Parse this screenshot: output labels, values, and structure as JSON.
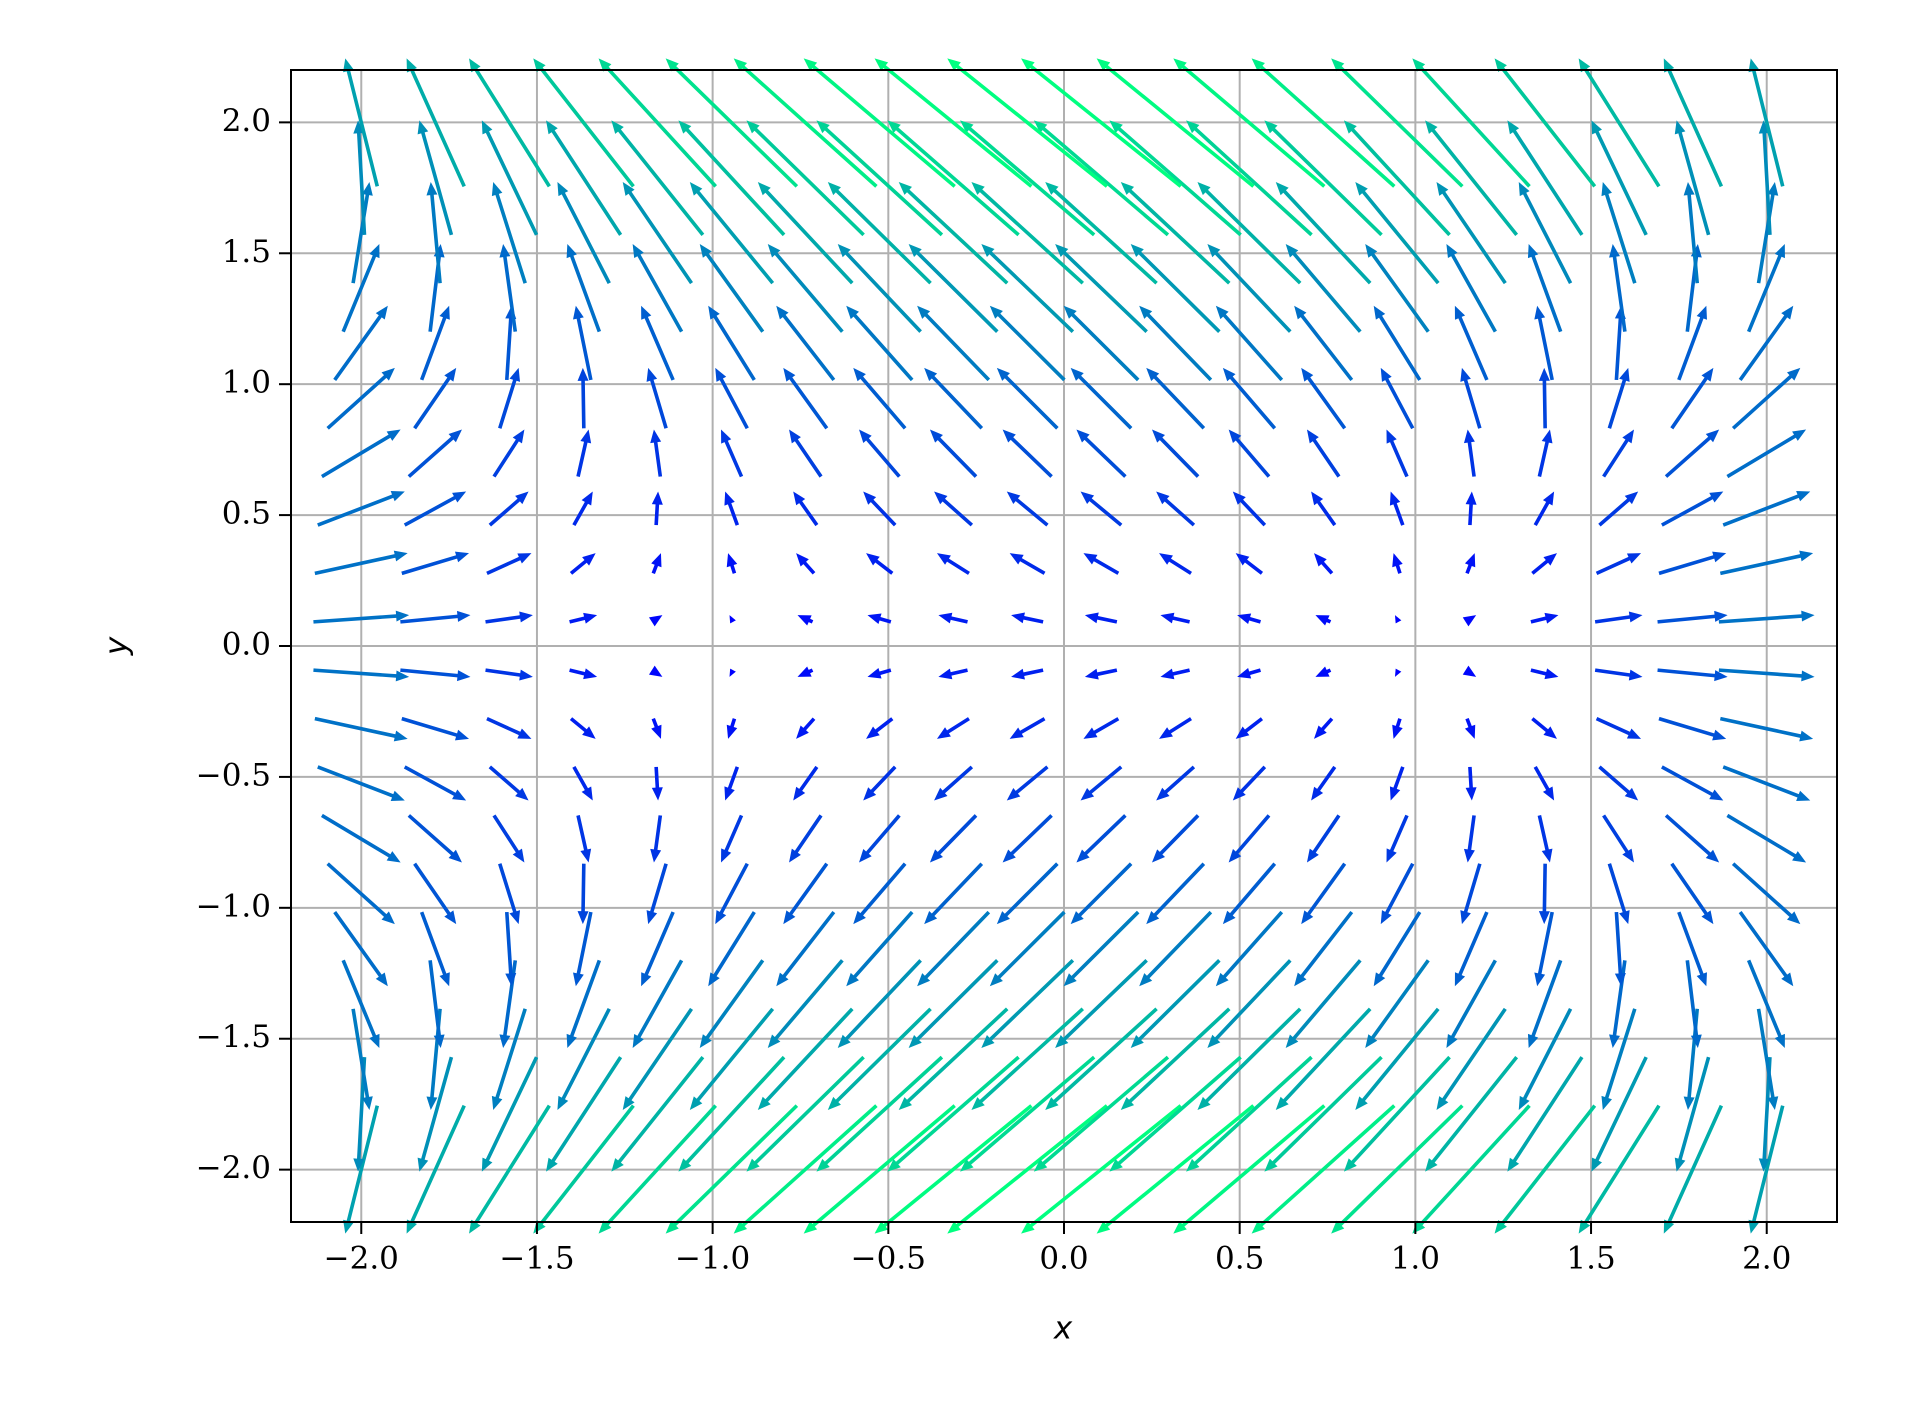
{
  "chart_data": {
    "type": "quiver",
    "xlabel": "x",
    "ylabel": "y",
    "xlim": [
      -2.2,
      2.2
    ],
    "ylim": [
      -2.2,
      2.2
    ],
    "xticks": [
      {
        "value": -2,
        "label": "−2.0"
      },
      {
        "value": -1.5,
        "label": "−1.5"
      },
      {
        "value": -1,
        "label": "−1.0"
      },
      {
        "value": -0.5,
        "label": "−0.5"
      },
      {
        "value": 0,
        "label": "0.0"
      },
      {
        "value": 0.5,
        "label": "0.5"
      },
      {
        "value": 1,
        "label": "1.0"
      },
      {
        "value": 1.5,
        "label": "1.5"
      },
      {
        "value": 2,
        "label": "2.0"
      }
    ],
    "yticks": [
      {
        "value": -2,
        "label": "−2.0"
      },
      {
        "value": -1.5,
        "label": "−1.5"
      },
      {
        "value": -1,
        "label": "−1.0"
      },
      {
        "value": -0.5,
        "label": "−0.5"
      },
      {
        "value": 0,
        "label": "0.0"
      },
      {
        "value": 0.5,
        "label": "0.5"
      },
      {
        "value": 1,
        "label": "1.0"
      },
      {
        "value": 1.5,
        "label": "1.5"
      },
      {
        "value": 2,
        "label": "2.0"
      }
    ],
    "grid": true,
    "colormap": [
      "#0000ff",
      "#00ff80"
    ],
    "x": [
      -2,
      -1.789,
      -1.579,
      -1.368,
      -1.158,
      -0.947,
      -0.737,
      -0.526,
      -0.316,
      -0.105,
      0.105,
      0.316,
      0.526,
      0.737,
      0.947,
      1.158,
      1.368,
      1.579,
      1.789,
      2
    ],
    "y": [
      -2,
      -1.789,
      -1.579,
      -1.368,
      -1.158,
      -0.947,
      -0.737,
      -0.526,
      -0.316,
      -0.105,
      0.105,
      0.316,
      0.526,
      0.737,
      0.947,
      1.158,
      1.368,
      1.579,
      1.789,
      2
    ],
    "u": [
      [
        -1,
        -1.8,
        -2.51,
        -3.13,
        -3.66,
        -4.1,
        -4.46,
        -4.72,
        -4.9,
        -4.99,
        -4.99,
        -4.9,
        -4.72,
        -4.46,
        -4.1,
        -3.66,
        -3.13,
        -2.51,
        -1.8,
        -1
      ],
      [
        -0.2,
        -1,
        -1.71,
        -2.33,
        -2.86,
        -3.3,
        -3.66,
        -3.92,
        -4.1,
        -4.19,
        -4.19,
        -4.1,
        -3.92,
        -3.66,
        -3.3,
        -2.86,
        -2.33,
        -1.71,
        -1,
        -0.2
      ],
      [
        0.51,
        -0.29,
        -1,
        -1.62,
        -2.15,
        -2.59,
        -2.95,
        -3.21,
        -3.39,
        -3.48,
        -3.48,
        -3.39,
        -3.21,
        -2.95,
        -2.59,
        -2.15,
        -1.62,
        -1,
        -0.29,
        0.51
      ],
      [
        1.13,
        0.33,
        -0.38,
        -1,
        -1.53,
        -1.97,
        -2.33,
        -2.59,
        -2.77,
        -2.86,
        -2.86,
        -2.77,
        -2.59,
        -2.33,
        -1.97,
        -1.53,
        -1,
        -0.38,
        0.33,
        1.13
      ],
      [
        1.66,
        0.86,
        0.15,
        -0.47,
        -1,
        -1.44,
        -1.8,
        -2.06,
        -2.24,
        -2.33,
        -2.33,
        -2.24,
        -2.06,
        -1.8,
        -1.44,
        -1,
        -0.47,
        0.15,
        0.86,
        1.66
      ],
      [
        2.1,
        1.3,
        0.59,
        -0.03,
        -0.56,
        -1,
        -1.36,
        -1.62,
        -1.8,
        -1.89,
        -1.89,
        -1.8,
        -1.62,
        -1.36,
        -1,
        -0.56,
        -0.03,
        0.59,
        1.3,
        2.1
      ],
      [
        2.46,
        1.66,
        0.95,
        0.33,
        -0.2,
        -0.64,
        -1,
        -1.26,
        -1.44,
        -1.53,
        -1.53,
        -1.44,
        -1.26,
        -1,
        -0.64,
        -0.2,
        0.33,
        0.95,
        1.66,
        2.46
      ],
      [
        2.72,
        1.92,
        1.21,
        0.59,
        0.06,
        -0.38,
        -0.74,
        -1,
        -1.18,
        -1.27,
        -1.27,
        -1.18,
        -1,
        -0.74,
        -0.38,
        0.06,
        0.59,
        1.21,
        1.92,
        2.72
      ],
      [
        2.9,
        2.1,
        1.39,
        0.77,
        0.24,
        -0.2,
        -0.56,
        -0.82,
        -1,
        -1.09,
        -1.09,
        -1,
        -0.82,
        -0.56,
        -0.2,
        0.24,
        0.77,
        1.39,
        2.1,
        2.9
      ],
      [
        2.99,
        2.19,
        1.48,
        0.86,
        0.33,
        -0.11,
        -0.47,
        -0.73,
        -0.91,
        -1,
        -1,
        -0.91,
        -0.73,
        -0.47,
        -0.11,
        0.33,
        0.86,
        1.48,
        2.19,
        2.99
      ],
      [
        2.99,
        2.19,
        1.48,
        0.86,
        0.33,
        -0.11,
        -0.47,
        -0.73,
        -0.91,
        -1,
        -1,
        -0.91,
        -0.73,
        -0.47,
        -0.11,
        0.33,
        0.86,
        1.48,
        2.19,
        2.99
      ],
      [
        2.9,
        2.1,
        1.39,
        0.77,
        0.24,
        -0.2,
        -0.56,
        -0.82,
        -1,
        -1.09,
        -1.09,
        -1,
        -0.82,
        -0.56,
        -0.2,
        0.24,
        0.77,
        1.39,
        2.1,
        2.9
      ],
      [
        2.72,
        1.92,
        1.21,
        0.59,
        0.06,
        -0.38,
        -0.74,
        -1,
        -1.18,
        -1.27,
        -1.27,
        -1.18,
        -1,
        -0.74,
        -0.38,
        0.06,
        0.59,
        1.21,
        1.92,
        2.72
      ],
      [
        2.46,
        1.66,
        0.95,
        0.33,
        -0.2,
        -0.64,
        -1,
        -1.26,
        -1.44,
        -1.53,
        -1.53,
        -1.44,
        -1.26,
        -1,
        -0.64,
        -0.2,
        0.33,
        0.95,
        1.66,
        2.46
      ],
      [
        2.1,
        1.3,
        0.59,
        -0.03,
        -0.56,
        -1,
        -1.36,
        -1.62,
        -1.8,
        -1.89,
        -1.89,
        -1.8,
        -1.62,
        -1.36,
        -1,
        -0.56,
        -0.03,
        0.59,
        1.3,
        2.1
      ],
      [
        1.66,
        0.86,
        0.15,
        -0.47,
        -1,
        -1.44,
        -1.8,
        -2.06,
        -2.24,
        -2.33,
        -2.33,
        -2.24,
        -2.06,
        -1.8,
        -1.44,
        -1,
        -0.47,
        0.15,
        0.86,
        1.66
      ],
      [
        1.13,
        0.33,
        -0.38,
        -1,
        -1.53,
        -1.97,
        -2.33,
        -2.59,
        -2.77,
        -2.86,
        -2.86,
        -2.77,
        -2.59,
        -2.33,
        -1.97,
        -1.53,
        -1,
        -0.38,
        0.33,
        1.13
      ],
      [
        0.51,
        -0.29,
        -1,
        -1.62,
        -2.15,
        -2.59,
        -2.95,
        -3.21,
        -3.39,
        -3.48,
        -3.48,
        -3.39,
        -3.21,
        -2.95,
        -2.59,
        -2.15,
        -1.62,
        -1,
        -0.29,
        0.51
      ],
      [
        -0.2,
        -1,
        -1.71,
        -2.33,
        -2.86,
        -3.3,
        -3.66,
        -3.92,
        -4.1,
        -4.19,
        -4.19,
        -4.1,
        -3.92,
        -3.66,
        -3.3,
        -2.86,
        -2.33,
        -1.71,
        -1,
        -0.2
      ],
      [
        -1,
        -1.8,
        -2.51,
        -3.13,
        -3.66,
        -4.1,
        -4.46,
        -4.72,
        -4.9,
        -4.99,
        -4.99,
        -4.9,
        -4.72,
        -4.46,
        -4.1,
        -3.66,
        -3.13,
        -2.51,
        -1.8,
        -1
      ]
    ],
    "v": [
      [
        -4,
        -4,
        -4,
        -4,
        -4,
        -4,
        -4,
        -4,
        -4,
        -4,
        -4,
        -4,
        -4,
        -4,
        -4,
        -4,
        -4,
        -4,
        -4,
        -4
      ],
      [
        -3.58,
        -3.58,
        -3.58,
        -3.58,
        -3.58,
        -3.58,
        -3.58,
        -3.58,
        -3.58,
        -3.58,
        -3.58,
        -3.58,
        -3.58,
        -3.58,
        -3.58,
        -3.58,
        -3.58,
        -3.58,
        -3.58,
        -3.58
      ],
      [
        -3.16,
        -3.16,
        -3.16,
        -3.16,
        -3.16,
        -3.16,
        -3.16,
        -3.16,
        -3.16,
        -3.16,
        -3.16,
        -3.16,
        -3.16,
        -3.16,
        -3.16,
        -3.16,
        -3.16,
        -3.16,
        -3.16,
        -3.16
      ],
      [
        -2.74,
        -2.74,
        -2.74,
        -2.74,
        -2.74,
        -2.74,
        -2.74,
        -2.74,
        -2.74,
        -2.74,
        -2.74,
        -2.74,
        -2.74,
        -2.74,
        -2.74,
        -2.74,
        -2.74,
        -2.74,
        -2.74,
        -2.74
      ],
      [
        -2.32,
        -2.32,
        -2.32,
        -2.32,
        -2.32,
        -2.32,
        -2.32,
        -2.32,
        -2.32,
        -2.32,
        -2.32,
        -2.32,
        -2.32,
        -2.32,
        -2.32,
        -2.32,
        -2.32,
        -2.32,
        -2.32,
        -2.32
      ],
      [
        -1.89,
        -1.89,
        -1.89,
        -1.89,
        -1.89,
        -1.89,
        -1.89,
        -1.89,
        -1.89,
        -1.89,
        -1.89,
        -1.89,
        -1.89,
        -1.89,
        -1.89,
        -1.89,
        -1.89,
        -1.89,
        -1.89,
        -1.89
      ],
      [
        -1.47,
        -1.47,
        -1.47,
        -1.47,
        -1.47,
        -1.47,
        -1.47,
        -1.47,
        -1.47,
        -1.47,
        -1.47,
        -1.47,
        -1.47,
        -1.47,
        -1.47,
        -1.47,
        -1.47,
        -1.47,
        -1.47,
        -1.47
      ],
      [
        -1.05,
        -1.05,
        -1.05,
        -1.05,
        -1.05,
        -1.05,
        -1.05,
        -1.05,
        -1.05,
        -1.05,
        -1.05,
        -1.05,
        -1.05,
        -1.05,
        -1.05,
        -1.05,
        -1.05,
        -1.05,
        -1.05,
        -1.05
      ],
      [
        -0.63,
        -0.63,
        -0.63,
        -0.63,
        -0.63,
        -0.63,
        -0.63,
        -0.63,
        -0.63,
        -0.63,
        -0.63,
        -0.63,
        -0.63,
        -0.63,
        -0.63,
        -0.63,
        -0.63,
        -0.63,
        -0.63,
        -0.63
      ],
      [
        -0.21,
        -0.21,
        -0.21,
        -0.21,
        -0.21,
        -0.21,
        -0.21,
        -0.21,
        -0.21,
        -0.21,
        -0.21,
        -0.21,
        -0.21,
        -0.21,
        -0.21,
        -0.21,
        -0.21,
        -0.21,
        -0.21,
        -0.21
      ],
      [
        0.21,
        0.21,
        0.21,
        0.21,
        0.21,
        0.21,
        0.21,
        0.21,
        0.21,
        0.21,
        0.21,
        0.21,
        0.21,
        0.21,
        0.21,
        0.21,
        0.21,
        0.21,
        0.21,
        0.21
      ],
      [
        0.63,
        0.63,
        0.63,
        0.63,
        0.63,
        0.63,
        0.63,
        0.63,
        0.63,
        0.63,
        0.63,
        0.63,
        0.63,
        0.63,
        0.63,
        0.63,
        0.63,
        0.63,
        0.63,
        0.63
      ],
      [
        1.05,
        1.05,
        1.05,
        1.05,
        1.05,
        1.05,
        1.05,
        1.05,
        1.05,
        1.05,
        1.05,
        1.05,
        1.05,
        1.05,
        1.05,
        1.05,
        1.05,
        1.05,
        1.05,
        1.05
      ],
      [
        1.47,
        1.47,
        1.47,
        1.47,
        1.47,
        1.47,
        1.47,
        1.47,
        1.47,
        1.47,
        1.47,
        1.47,
        1.47,
        1.47,
        1.47,
        1.47,
        1.47,
        1.47,
        1.47,
        1.47
      ],
      [
        1.89,
        1.89,
        1.89,
        1.89,
        1.89,
        1.89,
        1.89,
        1.89,
        1.89,
        1.89,
        1.89,
        1.89,
        1.89,
        1.89,
        1.89,
        1.89,
        1.89,
        1.89,
        1.89,
        1.89
      ],
      [
        2.32,
        2.32,
        2.32,
        2.32,
        2.32,
        2.32,
        2.32,
        2.32,
        2.32,
        2.32,
        2.32,
        2.32,
        2.32,
        2.32,
        2.32,
        2.32,
        2.32,
        2.32,
        2.32,
        2.32
      ],
      [
        2.74,
        2.74,
        2.74,
        2.74,
        2.74,
        2.74,
        2.74,
        2.74,
        2.74,
        2.74,
        2.74,
        2.74,
        2.74,
        2.74,
        2.74,
        2.74,
        2.74,
        2.74,
        2.74,
        2.74
      ],
      [
        3.16,
        3.16,
        3.16,
        3.16,
        3.16,
        3.16,
        3.16,
        3.16,
        3.16,
        3.16,
        3.16,
        3.16,
        3.16,
        3.16,
        3.16,
        3.16,
        3.16,
        3.16,
        3.16,
        3.16
      ],
      [
        3.58,
        3.58,
        3.58,
        3.58,
        3.58,
        3.58,
        3.58,
        3.58,
        3.58,
        3.58,
        3.58,
        3.58,
        3.58,
        3.58,
        3.58,
        3.58,
        3.58,
        3.58,
        3.58,
        3.58
      ],
      [
        4,
        4,
        4,
        4,
        4,
        4,
        4,
        4,
        4,
        4,
        4,
        4,
        4,
        4,
        4,
        4,
        4,
        4,
        4,
        4
      ]
    ]
  }
}
